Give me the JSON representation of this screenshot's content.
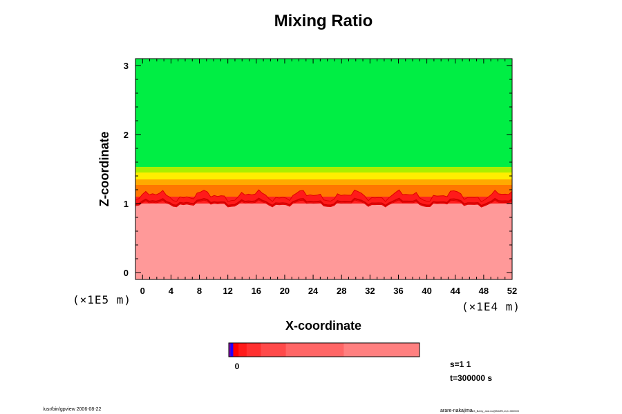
{
  "chart_data": {
    "type": "heatmap",
    "title": "Mixing Ratio",
    "xlabel": "X-coordinate",
    "ylabel": "Z-coordinate",
    "x_scale_label": "(×1E4 m)",
    "y_scale_label": "(×1E5 m)",
    "x_ticks": [
      "0",
      "4",
      "8",
      "12",
      "16",
      "20",
      "24",
      "28",
      "32",
      "36",
      "40",
      "44",
      "48",
      "52"
    ],
    "y_ticks": [
      "0",
      "1",
      "2",
      "3"
    ],
    "xlim": [
      -1,
      52
    ],
    "ylim": [
      -0.1,
      3.1
    ],
    "grid": false,
    "layers": [
      {
        "name": "upper",
        "z_from": 1.53,
        "z_to": 3.1,
        "color": "#00ee44"
      },
      {
        "name": "transition-yellowgreen",
        "z_from": 1.45,
        "z_to": 1.53,
        "color": "#aaee00"
      },
      {
        "name": "transition-yellow",
        "z_from": 1.35,
        "z_to": 1.45,
        "color": "#ffee00"
      },
      {
        "name": "transition-orange-light",
        "z_from": 1.27,
        "z_to": 1.35,
        "color": "#ffaa00"
      },
      {
        "name": "transition-orange",
        "z_from": 1.1,
        "z_to": 1.27,
        "color": "#ff7700"
      },
      {
        "name": "interface-red",
        "z_from": 1.0,
        "z_to": 1.1,
        "color": "#ff2020"
      },
      {
        "name": "lower",
        "z_from": -0.1,
        "z_to": 1.0,
        "color": "#ff9999"
      }
    ],
    "colorbar": {
      "segments": [
        {
          "color": "#7a00aa",
          "width": 2
        },
        {
          "color": "#2200ff",
          "width": 3
        },
        {
          "color": "#ff0000",
          "width": 6
        },
        {
          "color": "#ff1a1a",
          "width": 9
        },
        {
          "color": "#ff3030",
          "width": 16
        },
        {
          "color": "#ff4a4a",
          "width": 28
        },
        {
          "color": "#ff6666",
          "width": 65
        },
        {
          "color": "#ff8080",
          "width": 85
        }
      ],
      "label": "0"
    },
    "annotations": {
      "s": "s=1 1",
      "t": "t=300000 s"
    }
  },
  "footer": {
    "left": "/usr/bin/gpview 2006-08-22",
    "right_main": "arare-nakajima",
    "right_small": "03_Barry_and.nc@MixRt,x1,t=300000"
  }
}
